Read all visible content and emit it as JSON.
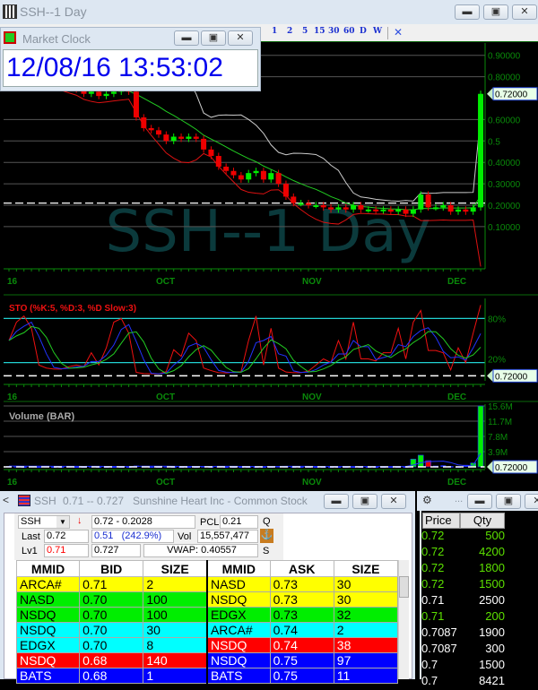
{
  "main_window": {
    "title": "SSH--1 Day",
    "watermark": "SSH--1 Day"
  },
  "toolbar": {
    "intervals": [
      "1",
      "2",
      "5",
      "15",
      "30",
      "60",
      "D",
      "W"
    ],
    "close": "✕"
  },
  "chart": {
    "price_axis": [
      "0.90000",
      "0.80000",
      "0.60000",
      "0.5",
      "0.40000",
      "0.30000",
      "0.20000",
      "0.10000"
    ],
    "price_axis_values": [
      0.9,
      0.8,
      0.6,
      0.5,
      0.4,
      0.3,
      0.2,
      0.1
    ],
    "last_price_tag": "0.72000",
    "prev_close_line": 0.21,
    "date_labels": [
      "16",
      "OCT",
      "NOV",
      "DEC"
    ],
    "sto_title": "STO (%K:5, %D:3, %D Slow:3)",
    "sto_levels": [
      "80%",
      "20%"
    ],
    "volume_title": "Volume (BAR)",
    "volume_axis": [
      "15.6M",
      "11.7M",
      "7.8M",
      "3.9M"
    ],
    "colors": {
      "up": "#00ee00",
      "down": "#ee0000",
      "sma": "#22cc22",
      "upper": "#cccccc",
      "lower": "#dd1111",
      "grid": "#555555",
      "axis": "#0a8a0a",
      "watermark": "#0b3a3c",
      "sto_band": "#22d0d0"
    }
  },
  "chart_data": {
    "type": "candlestick",
    "close": [
      0.8,
      0.82,
      0.84,
      0.83,
      0.8,
      0.78,
      0.77,
      0.76,
      0.75,
      0.74,
      0.72,
      0.73,
      0.71,
      0.72,
      0.73,
      0.74,
      0.73,
      0.61,
      0.56,
      0.55,
      0.53,
      0.5,
      0.52,
      0.51,
      0.52,
      0.51,
      0.46,
      0.43,
      0.38,
      0.36,
      0.34,
      0.32,
      0.35,
      0.36,
      0.32,
      0.35,
      0.3,
      0.24,
      0.21,
      0.21,
      0.2,
      0.2,
      0.19,
      0.18,
      0.19,
      0.18,
      0.2,
      0.18,
      0.18,
      0.175,
      0.18,
      0.17,
      0.18,
      0.16,
      0.18,
      0.25,
      0.19,
      0.19,
      0.2,
      0.17,
      0.18,
      0.17,
      0.19,
      0.72
    ],
    "volume_m": [
      0.2,
      0.2,
      0.1,
      0.2,
      0.1,
      0.2,
      0.1,
      0.1,
      0.2,
      0.1,
      0.1,
      0.2,
      0.1,
      0.1,
      0.1,
      0.1,
      0.1,
      0.3,
      0.2,
      0.1,
      0.1,
      0.2,
      0.1,
      0.1,
      0.1,
      0.1,
      0.2,
      0.1,
      0.2,
      0.1,
      0.1,
      0.1,
      0.1,
      0.1,
      0.1,
      0.1,
      0.2,
      0.2,
      0.1,
      0.1,
      0.1,
      0.1,
      0.1,
      0.1,
      0.1,
      0.1,
      0.1,
      0.1,
      0.1,
      0.1,
      0.1,
      0.1,
      0.1,
      0.1,
      2.0,
      3.0,
      1.6,
      0.3,
      0.4,
      0.2,
      0.1,
      0.5,
      1.0,
      15.6
    ],
    "ylim": [
      0,
      0.95
    ]
  },
  "clock": {
    "title": "Market Clock",
    "time": "12/08/16 13:53:02"
  },
  "level2": {
    "title_symbol": "SSH",
    "title_range": "0.71 -- 0.727",
    "title_name": "Sunshine Heart Inc - Common Stock",
    "symbol": "SSH",
    "change": "0.72 - 0.2028",
    "pcl_label": "PCL",
    "pcl": "0.21",
    "q": "Q",
    "last_label": "Last",
    "last": "0.72",
    "net_change": "0.51   (242.9%)",
    "vol_label": "Vol",
    "vol": "15,557,477",
    "lv1_label": "Lv1",
    "lv1_bid": "0.71",
    "lv1_ask": "0.727",
    "vwap": "VWAP: 0.40557",
    "s": "S",
    "headers": [
      "MMID",
      "BID",
      "SIZE",
      "MMID",
      "ASK",
      "SIZE"
    ],
    "bids": [
      {
        "mmid": "ARCA#",
        "price": "0.71",
        "size": "2",
        "bg": "#ffff00",
        "fg": "#000"
      },
      {
        "mmid": "NASD",
        "price": "0.70",
        "size": "100",
        "bg": "#00ee00",
        "fg": "#000"
      },
      {
        "mmid": "NSDQ",
        "price": "0.70",
        "size": "100",
        "bg": "#00ee00",
        "fg": "#000"
      },
      {
        "mmid": "NSDQ",
        "price": "0.70",
        "size": "30",
        "bg": "#00ffff",
        "fg": "#000"
      },
      {
        "mmid": "EDGX",
        "price": "0.70",
        "size": "8",
        "bg": "#00ffff",
        "fg": "#000"
      },
      {
        "mmid": "NSDQ",
        "price": "0.68",
        "size": "140",
        "bg": "#ff0000",
        "fg": "#fff"
      },
      {
        "mmid": "BATS",
        "price": "0.68",
        "size": "1",
        "bg": "#0000ff",
        "fg": "#fff"
      }
    ],
    "asks": [
      {
        "mmid": "NASD",
        "price": "0.73",
        "size": "30",
        "bg": "#ffff00",
        "fg": "#000"
      },
      {
        "mmid": "NSDQ",
        "price": "0.73",
        "size": "30",
        "bg": "#ffff00",
        "fg": "#000"
      },
      {
        "mmid": "EDGX",
        "price": "0.73",
        "size": "32",
        "bg": "#00ee00",
        "fg": "#000"
      },
      {
        "mmid": "ARCA#",
        "price": "0.74",
        "size": "2",
        "bg": "#00ffff",
        "fg": "#000"
      },
      {
        "mmid": "NSDQ",
        "price": "0.74",
        "size": "38",
        "bg": "#ff0000",
        "fg": "#fff"
      },
      {
        "mmid": "NSDQ",
        "price": "0.75",
        "size": "97",
        "bg": "#0000ff",
        "fg": "#fff"
      },
      {
        "mmid": "BATS",
        "price": "0.75",
        "size": "11",
        "bg": "#0000ff",
        "fg": "#fff"
      }
    ]
  },
  "time_sales": {
    "title_dots": "...",
    "headers": [
      "Price",
      "Qty"
    ],
    "rows": [
      {
        "price": "0.72",
        "qty": "500",
        "color": "#5ce000"
      },
      {
        "price": "0.72",
        "qty": "4200",
        "color": "#5ce000"
      },
      {
        "price": "0.72",
        "qty": "1800",
        "color": "#5ce000"
      },
      {
        "price": "0.72",
        "qty": "1500",
        "color": "#5ce000"
      },
      {
        "price": "0.71",
        "qty": "2500",
        "color": "#ffffff"
      },
      {
        "price": "0.71",
        "qty": "200",
        "color": "#5ce000"
      },
      {
        "price": "0.7087",
        "qty": "1900",
        "color": "#ffffff"
      },
      {
        "price": "0.7087",
        "qty": "300",
        "color": "#ffffff"
      },
      {
        "price": "0.7",
        "qty": "1500",
        "color": "#ffffff"
      },
      {
        "price": "0.7",
        "qty": "8421",
        "color": "#ffffff"
      }
    ]
  },
  "window_buttons": {
    "min": "▬",
    "max": "▣",
    "close": "✕"
  }
}
